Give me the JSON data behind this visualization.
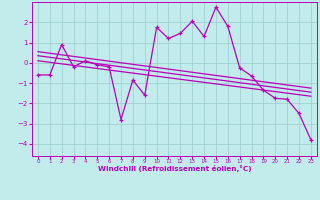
{
  "xlabel": "Windchill (Refroidissement éolien,°C)",
  "bg_color": "#c2ecec",
  "line_color": "#bb00bb",
  "grid_color": "#99cccc",
  "xlim": [
    -0.5,
    23.5
  ],
  "ylim": [
    -4.6,
    3.0
  ],
  "xticks": [
    0,
    1,
    2,
    3,
    4,
    5,
    6,
    7,
    8,
    9,
    10,
    11,
    12,
    13,
    14,
    15,
    16,
    17,
    18,
    19,
    20,
    21,
    22,
    23
  ],
  "yticks": [
    -4,
    -3,
    -2,
    -1,
    0,
    1,
    2
  ],
  "main_x": [
    0,
    1,
    2,
    3,
    4,
    5,
    6,
    7,
    8,
    9,
    10,
    11,
    12,
    13,
    14,
    15,
    16,
    17,
    18,
    19,
    20,
    21,
    22,
    23
  ],
  "main_y": [
    -0.6,
    -0.6,
    0.9,
    -0.2,
    0.1,
    -0.1,
    -0.2,
    -2.8,
    -0.85,
    -1.6,
    1.75,
    1.2,
    1.45,
    2.05,
    1.3,
    2.75,
    1.8,
    -0.25,
    -0.65,
    -1.35,
    -1.75,
    -1.8,
    -2.5,
    -3.8
  ],
  "trend1_x": [
    0,
    23
  ],
  "trend1_y": [
    0.55,
    -1.25
  ],
  "trend2_x": [
    0,
    23
  ],
  "trend2_y": [
    0.35,
    -1.45
  ],
  "trend3_x": [
    0,
    23
  ],
  "trend3_y": [
    0.1,
    -1.65
  ]
}
